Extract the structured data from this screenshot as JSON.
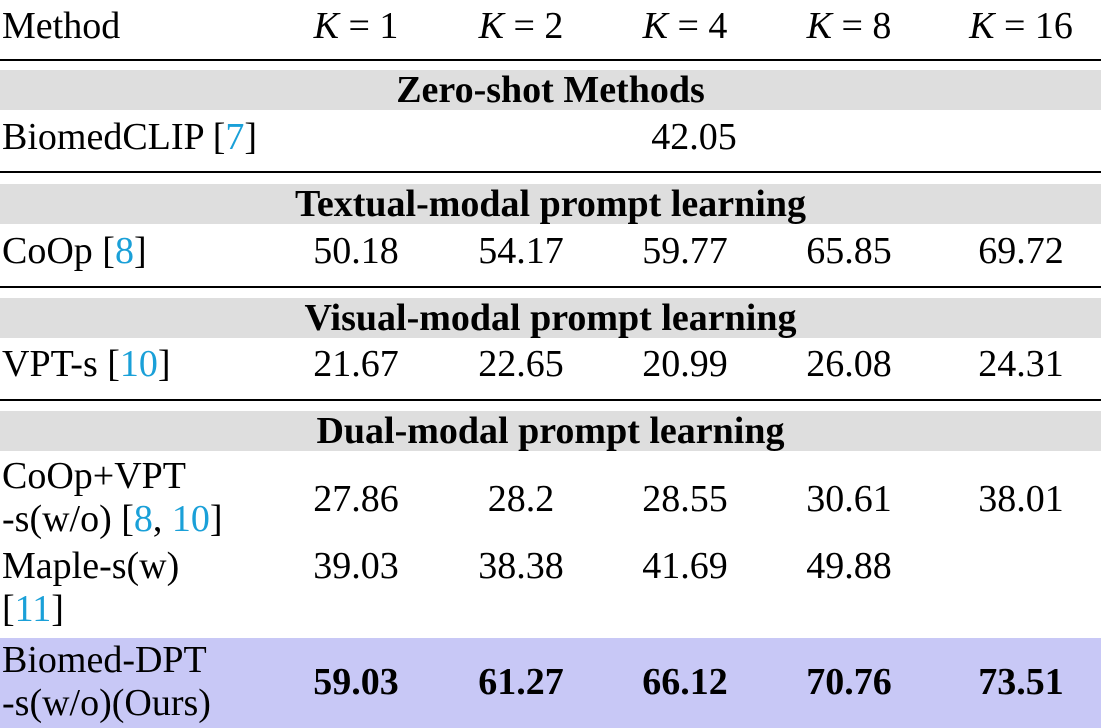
{
  "header": {
    "method": "Method",
    "k_cols": [
      {
        "var": "K",
        "eq": "=",
        "val": "1"
      },
      {
        "var": "K",
        "eq": "=",
        "val": "2"
      },
      {
        "var": "K",
        "eq": "=",
        "val": "4"
      },
      {
        "var": "K",
        "eq": "=",
        "val": "8"
      },
      {
        "var": "K",
        "eq": "=",
        "val": "16"
      }
    ]
  },
  "sections": [
    {
      "title": "Zero-shot Methods",
      "rows": [
        {
          "name": "BiomedCLIP [",
          "cite": "7",
          "close": "]",
          "merged_value": "42.05"
        }
      ]
    },
    {
      "title": "Textual-modal prompt learning",
      "rows": [
        {
          "name": "CoOp [",
          "cite": "8",
          "close": "]",
          "values": [
            "50.18",
            "54.17",
            "59.77",
            "65.85",
            "69.72"
          ]
        }
      ]
    },
    {
      "title": "Visual-modal prompt learning",
      "rows": [
        {
          "name": "VPT-s [",
          "cite": "10",
          "close": "]",
          "values": [
            "21.67",
            "22.65",
            "20.99",
            "26.08",
            "24.31"
          ]
        }
      ]
    },
    {
      "title": "Dual-modal prompt learning",
      "rows": [
        {
          "line1": "CoOp+VPT",
          "line2_pre": "-s(w/o) [",
          "cite_a": "8",
          "sep": ", ",
          "cite_b": "10",
          "close": "]",
          "values": [
            "27.86",
            "28.2",
            "28.55",
            "30.61",
            "38.01"
          ]
        },
        {
          "line1": "Maple-s(w)",
          "line2_pre": "[",
          "cite": "11",
          "close": "]",
          "values": [
            "39.03",
            "38.38",
            "41.69",
            "49.88",
            ""
          ]
        },
        {
          "line1": "Biomed-DPT",
          "line2": "-s(w/o)(Ours)",
          "values": [
            "59.03",
            "61.27",
            "66.12",
            "70.76",
            "73.51"
          ],
          "highlight_color": "#c8c8f6"
        }
      ]
    }
  ],
  "colors": {
    "section_bg": "#dedede",
    "highlight": "#c8c8f6",
    "cite": "#1aa0d8"
  }
}
